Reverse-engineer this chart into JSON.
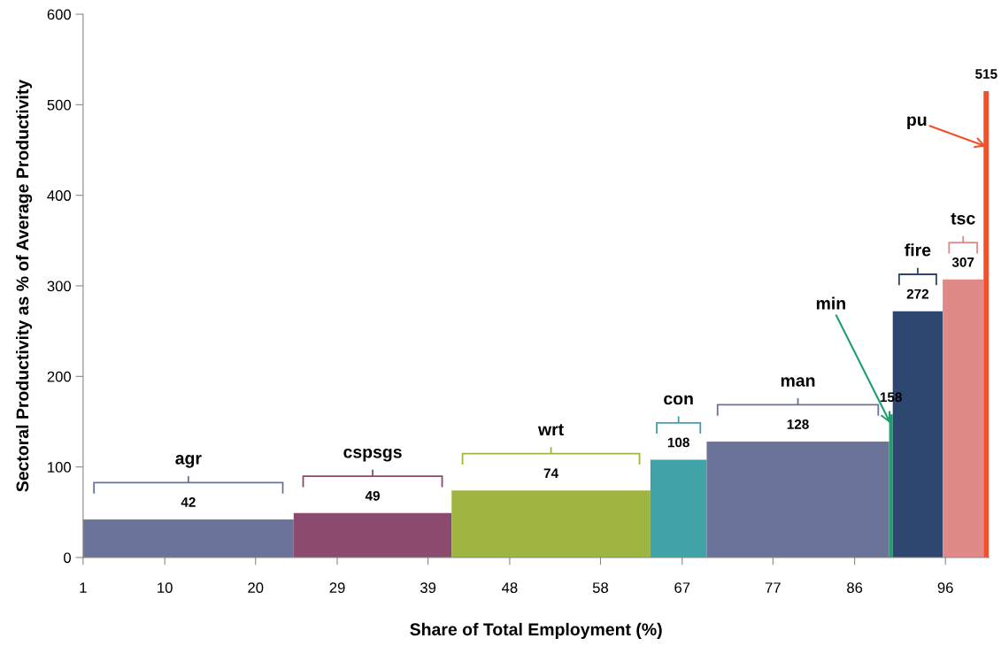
{
  "chart_data": {
    "type": "histogram",
    "xlabel": "Share of Total Employment (%)",
    "ylabel": "Sectoral Productivity as % of Average Productivity",
    "bins": [
      1,
      24.2,
      41.6,
      63.5,
      69.7,
      89.8,
      90.2,
      95.7,
      100.2,
      100.8
    ],
    "values": [
      42,
      49,
      74,
      108,
      128,
      158,
      272,
      307,
      515
    ],
    "colors": [
      "#6b7399",
      "#8c4a6e",
      "#9fb541",
      "#3fa3a8",
      "#6b7399",
      "#1e9e6e",
      "#2e4770",
      "#e08a88",
      "#f0502a"
    ],
    "data_labels": true,
    "xlim": [
      1,
      100.8
    ],
    "xticks": [
      1,
      10,
      20,
      29,
      39,
      48,
      58,
      67,
      77,
      86,
      96
    ],
    "ylim": [
      0,
      600
    ],
    "yticks": [
      0,
      100,
      200,
      300,
      400,
      500,
      600
    ],
    "grid": false,
    "annotations": [
      "agr",
      "cspsgs",
      "wrt",
      "con",
      "man",
      {
        "text": "min",
        "x": 89.95,
        "y": 148
      },
      "fire",
      "tsc",
      {
        "text": "pu",
        "x": 100.5,
        "y": 454
      }
    ]
  }
}
